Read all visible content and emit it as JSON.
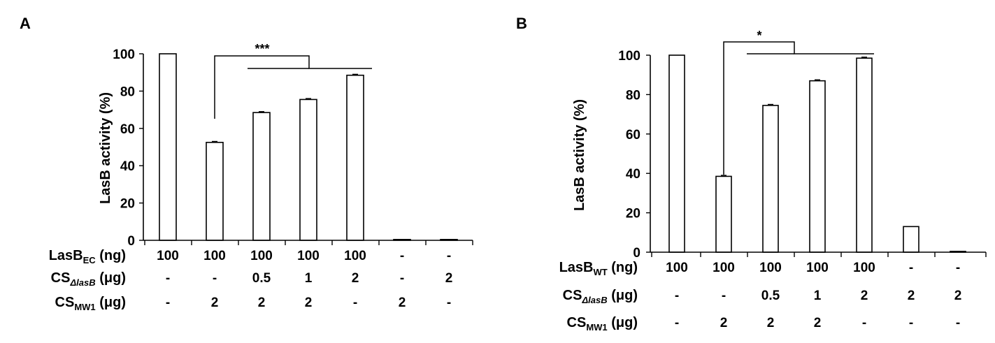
{
  "chart_data": [
    {
      "panel": "A",
      "type": "bar",
      "ylabel": "LasB activity (%)",
      "ylim": [
        0,
        100
      ],
      "yticks": [
        "0",
        "20",
        "40",
        "60",
        "80",
        "100"
      ],
      "values": [
        100,
        52.5,
        68.5,
        75.5,
        88.5,
        0.3,
        0.3
      ],
      "errors": [
        0,
        0.5,
        0.5,
        0.5,
        0.5,
        0,
        0
      ],
      "significance": "***",
      "rows": [
        {
          "label_main": "LasB",
          "label_sub": "EC",
          "label_rest": " (ng)",
          "sub_italic": false,
          "cells": [
            "100",
            "100",
            "100",
            "100",
            "100",
            "-",
            "-"
          ]
        },
        {
          "label_main": "CS",
          "label_sub": "ΔlasB",
          "label_rest": " (μg)",
          "sub_italic": true,
          "cells": [
            "-",
            "-",
            "0.5",
            "1",
            "2",
            "-",
            "2"
          ]
        },
        {
          "label_main": "CS",
          "label_sub": "MW1",
          "label_rest": " (μg)",
          "sub_italic": false,
          "cells": [
            "-",
            "2",
            "2",
            "2",
            "-",
            "2",
            "-"
          ]
        }
      ]
    },
    {
      "panel": "B",
      "type": "bar",
      "ylabel": "LasB activity (%)",
      "ylim": [
        0,
        100
      ],
      "yticks": [
        "0",
        "20",
        "40",
        "60",
        "80",
        "100"
      ],
      "values": [
        100,
        38.5,
        74.5,
        87,
        98.5,
        13,
        0
      ],
      "errors": [
        0,
        0.5,
        0.5,
        0.5,
        0.5,
        0,
        0
      ],
      "significance": "*",
      "rows": [
        {
          "label_main": "LasB",
          "label_sub": "WT",
          "label_rest": " (ng)",
          "sub_italic": false,
          "cells": [
            "100",
            "100",
            "100",
            "100",
            "100",
            "-",
            "-"
          ]
        },
        {
          "label_main": "CS",
          "label_sub": "ΔlasB",
          "label_rest": " (μg)",
          "sub_italic": true,
          "cells": [
            "-",
            "-",
            "0.5",
            "1",
            "2",
            "2",
            "2"
          ]
        },
        {
          "label_main": "CS",
          "label_sub": "MW1",
          "label_rest": " (μg)",
          "sub_italic": false,
          "cells": [
            "-",
            "2",
            "2",
            "2",
            "-",
            "-",
            "-"
          ]
        }
      ]
    }
  ]
}
